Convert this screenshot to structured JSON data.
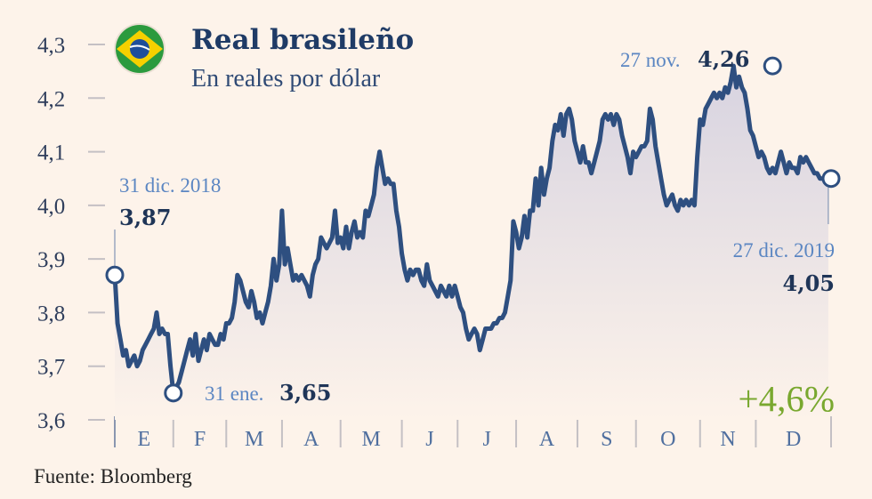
{
  "header": {
    "title": "Real brasileño",
    "subtitle": "En reales por dólar",
    "flag_icon": "brazil-flag-icon"
  },
  "source": "Fuente: Bloomberg",
  "change_label": "+4,6%",
  "colors": {
    "line": "#2e4f80",
    "area_top": "#d7d3e0",
    "area_bottom": "#fdf3ea",
    "change": "#79a82f",
    "background": "#fdf3ea"
  },
  "annotations": [
    {
      "key": "start",
      "date": "31 dic. 2018",
      "value": "3,87",
      "x": 0,
      "y": 3.87
    },
    {
      "key": "min",
      "date": "31 ene.",
      "value": "3,65",
      "x": 21,
      "y": 3.65
    },
    {
      "key": "max",
      "date": "27 nov.",
      "value": "4,26",
      "x": 236,
      "y": 4.26
    },
    {
      "key": "end",
      "date": "27 dic. 2019",
      "value": "4,05",
      "x": 257,
      "y": 4.05
    }
  ],
  "chart_data": {
    "type": "line",
    "title": "Real brasileño",
    "subtitle": "En reales por dólar",
    "ylabel": "",
    "xlabel": "",
    "ylim": [
      3.6,
      4.3
    ],
    "yticks": [
      "4,3",
      "4,2",
      "4,1",
      "4,0",
      "3,9",
      "3,8",
      "3,7",
      "3,6"
    ],
    "ytick_values": [
      4.3,
      4.2,
      4.1,
      4.0,
      3.9,
      3.8,
      3.7,
      3.6
    ],
    "xlim": [
      0,
      257
    ],
    "months": [
      "E",
      "F",
      "M",
      "A",
      "M",
      "J",
      "J",
      "A",
      "S",
      "O",
      "N",
      "D"
    ],
    "month_bounds": [
      0,
      21,
      40,
      60,
      81,
      103,
      123,
      144,
      166,
      187,
      210,
      230,
      257
    ],
    "grid": false,
    "series": [
      {
        "values": [
          3.87,
          3.78,
          3.75,
          3.72,
          3.73,
          3.7,
          3.71,
          3.72,
          3.7,
          3.71,
          3.73,
          3.74,
          3.75,
          3.76,
          3.77,
          3.8,
          3.76,
          3.77,
          3.76,
          3.76,
          3.7,
          3.65,
          3.66,
          3.67,
          3.69,
          3.71,
          3.73,
          3.75,
          3.72,
          3.76,
          3.71,
          3.73,
          3.75,
          3.73,
          3.76,
          3.75,
          3.74,
          3.74,
          3.76,
          3.75,
          3.78,
          3.78,
          3.79,
          3.82,
          3.87,
          3.86,
          3.84,
          3.82,
          3.81,
          3.84,
          3.82,
          3.79,
          3.8,
          3.78,
          3.8,
          3.82,
          3.85,
          3.9,
          3.86,
          3.89,
          3.99,
          3.89,
          3.92,
          3.89,
          3.86,
          3.87,
          3.86,
          3.87,
          3.86,
          3.85,
          3.83,
          3.87,
          3.89,
          3.9,
          3.94,
          3.93,
          3.92,
          3.93,
          3.94,
          3.99,
          3.93,
          3.94,
          3.92,
          3.96,
          3.92,
          3.95,
          3.97,
          3.94,
          3.95,
          3.94,
          3.99,
          3.98,
          4.0,
          4.02,
          4.07,
          4.1,
          4.07,
          4.04,
          4.05,
          4.04,
          4.04,
          3.99,
          3.96,
          3.91,
          3.88,
          3.86,
          3.88,
          3.87,
          3.88,
          3.88,
          3.86,
          3.85,
          3.89,
          3.86,
          3.85,
          3.84,
          3.83,
          3.85,
          3.84,
          3.83,
          3.85,
          3.83,
          3.85,
          3.83,
          3.81,
          3.8,
          3.77,
          3.75,
          3.76,
          3.77,
          3.76,
          3.73,
          3.75,
          3.77,
          3.77,
          3.77,
          3.78,
          3.78,
          3.79,
          3.79,
          3.8,
          3.83,
          3.86,
          3.97,
          3.95,
          3.92,
          3.94,
          3.98,
          3.94,
          3.99,
          3.99,
          4.05,
          4.0,
          4.07,
          4.02,
          4.05,
          4.07,
          4.12,
          4.15,
          4.14,
          4.17,
          4.13,
          4.17,
          4.18,
          4.16,
          4.12,
          4.1,
          4.08,
          4.11,
          4.08,
          4.08,
          4.06,
          4.08,
          4.1,
          4.12,
          4.16,
          4.17,
          4.16,
          4.17,
          4.15,
          4.17,
          4.16,
          4.13,
          4.11,
          4.09,
          4.06,
          4.1,
          4.09,
          4.1,
          4.11,
          4.11,
          4.12,
          4.18,
          4.16,
          4.11,
          4.08,
          4.05,
          4.02,
          4.0,
          4.01,
          4.02,
          4.0,
          3.99,
          4.01,
          4.0,
          4.01,
          4.0,
          4.01,
          4.0,
          4.09,
          4.16,
          4.15,
          4.18,
          4.19,
          4.2,
          4.21,
          4.2,
          4.21,
          4.2,
          4.22,
          4.21,
          4.23,
          4.26,
          4.22,
          4.24,
          4.22,
          4.21,
          4.18,
          4.14,
          4.13,
          4.11,
          4.09,
          4.1,
          4.09,
          4.07,
          4.06,
          4.07,
          4.06,
          4.08,
          4.1,
          4.08,
          4.06,
          4.08,
          4.07,
          4.07,
          4.06,
          4.09,
          4.08,
          4.09,
          4.08,
          4.07,
          4.06,
          4.06,
          4.05,
          4.05,
          4.05,
          4.05
        ]
      }
    ]
  }
}
